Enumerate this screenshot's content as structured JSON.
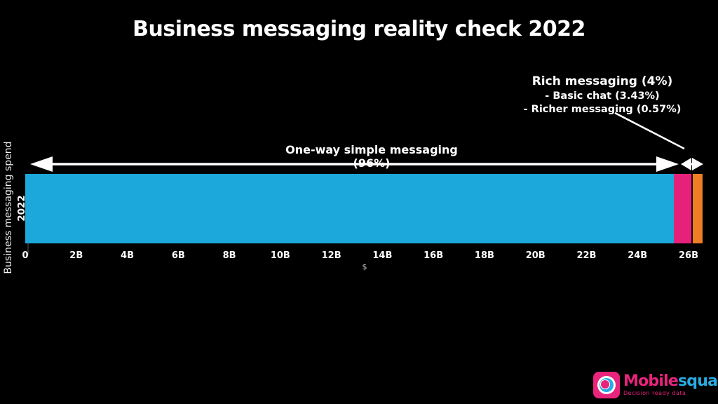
{
  "title": "Business messaging reality check 2022",
  "annotations": {
    "rich_heading": "Rich messaging (4%)",
    "rich_items": [
      "- Basic chat (3.43%)",
      "- Richer messaging (0.57%)"
    ],
    "one_way_label": "One-way simple messaging (96%)"
  },
  "chart_data": {
    "type": "bar",
    "orientation": "horizontal_stacked",
    "title": "Business messaging reality check 2022",
    "categories": [
      "2022"
    ],
    "series": [
      {
        "name": "One-way simple messaging",
        "percent": 96,
        "approx_spend": "25.4B",
        "color": "#1CA8DB",
        "drawn_frac": 0.9575
      },
      {
        "name": "Basic chat",
        "percent": 3.43,
        "approx_spend": "0.9B",
        "color": "#E7207A",
        "drawn_frac": 0.0262
      },
      {
        "name": "Richer messaging",
        "percent": 0.57,
        "approx_spend": "0.15B",
        "color": "#EE7D23",
        "drawn_frac": 0.0163
      }
    ],
    "xlabel": "$",
    "ylabel": "Business messaging spend",
    "x_ticks": [
      "0",
      "2B",
      "4B",
      "6B",
      "8B",
      "10B",
      "12B",
      "14B",
      "16B",
      "18B",
      "20B",
      "22B",
      "24B",
      "26B"
    ],
    "xlim": [
      0,
      26.6
    ],
    "grid": false,
    "legend": false
  },
  "logo": {
    "brand_primary": "Mobile",
    "brand_secondary": "squared",
    "tagline": "Decision ready data",
    "colors": {
      "primary": "#E8247D",
      "secondary": "#29ABE2"
    }
  },
  "background": "#000000"
}
